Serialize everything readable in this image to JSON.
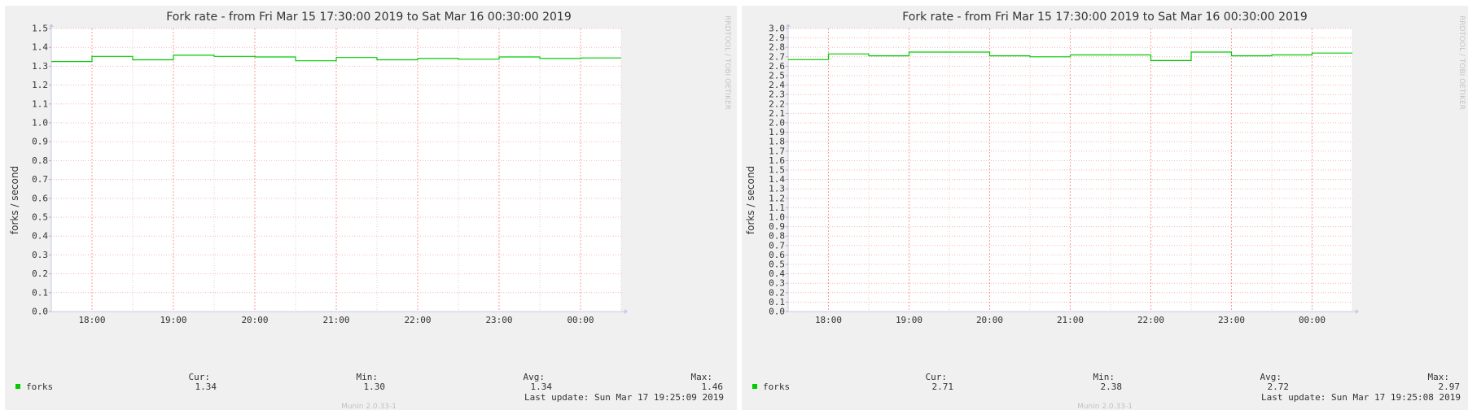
{
  "charts": [
    {
      "title": "Fork rate - from Fri Mar 15 17:30:00 2019 to Sat Mar 16 00:30:00 2019",
      "side_label": "RRDTOOL / TOBI OETIKER",
      "footer_version": "Munin 2.0.33-1",
      "legend": {
        "color": "#00cc00",
        "name": "forks",
        "cur_label": "Cur:",
        "cur": "1.34",
        "min_label": "Min:",
        "min": "1.30",
        "avg_label": "Avg:",
        "avg": "1.34",
        "max_label": "Max:",
        "max": "1.46",
        "last_update": "Last update:  Sun Mar 17 19:25:09 2019"
      }
    },
    {
      "title": "Fork rate - from Fri Mar 15 17:30:00 2019 to Sat Mar 16 00:30:00 2019",
      "side_label": "RRDTOOL / TOBI OETIKER",
      "footer_version": "Munin 2.0.33-1",
      "legend": {
        "color": "#00cc00",
        "name": "forks",
        "cur_label": "Cur:",
        "cur": "2.71",
        "min_label": "Min:",
        "min": "2.38",
        "avg_label": "Avg:",
        "avg": "2.72",
        "max_label": "Max:",
        "max": "2.97",
        "last_update": "Last update:  Sun Mar 17 19:25:08 2019"
      }
    }
  ],
  "chart_data": [
    {
      "type": "line",
      "ylabel": "forks / second",
      "xlabel": "",
      "ylim": [
        0,
        1.5
      ],
      "y_ticks": [
        0.0,
        0.1,
        0.2,
        0.3,
        0.4,
        0.5,
        0.6,
        0.7,
        0.8,
        0.9,
        1.0,
        1.1,
        1.2,
        1.3,
        1.4,
        1.5
      ],
      "y_tick_labels": [
        "0.0",
        "0.1",
        "0.2",
        "0.3",
        "0.4",
        "0.5",
        "0.6",
        "0.7",
        "0.8",
        "0.9",
        "1.0",
        "1.1",
        "1.2",
        "1.3",
        "1.4",
        "1.5"
      ],
      "x_tick_labels": [
        "18:00",
        "19:00",
        "20:00",
        "21:00",
        "22:00",
        "23:00",
        "00:00"
      ],
      "grid": true,
      "series": [
        {
          "name": "forks",
          "color": "#00cc00",
          "step": true,
          "x": [
            "17:30",
            "18:00",
            "18:30",
            "19:00",
            "19:30",
            "20:00",
            "20:30",
            "21:00",
            "21:30",
            "22:00",
            "22:30",
            "23:00",
            "23:30",
            "00:00",
            "00:30"
          ],
          "y": [
            1.325,
            1.352,
            1.334,
            1.358,
            1.352,
            1.349,
            1.329,
            1.346,
            1.334,
            1.341,
            1.337,
            1.349,
            1.341,
            1.344,
            1.344
          ]
        }
      ]
    },
    {
      "type": "line",
      "ylabel": "forks / second",
      "xlabel": "",
      "ylim": [
        0,
        3.0
      ],
      "y_ticks": [
        0.0,
        0.1,
        0.2,
        0.3,
        0.4,
        0.5,
        0.6,
        0.7,
        0.8,
        0.9,
        1.0,
        1.1,
        1.2,
        1.3,
        1.4,
        1.5,
        1.6,
        1.7,
        1.8,
        1.9,
        2.0,
        2.1,
        2.2,
        2.3,
        2.4,
        2.5,
        2.6,
        2.7,
        2.8,
        2.9,
        3.0
      ],
      "y_tick_labels": [
        "0.0",
        "0.1",
        "0.2",
        "0.3",
        "0.4",
        "0.5",
        "0.6",
        "0.7",
        "0.8",
        "0.9",
        "1.0",
        "1.1",
        "1.2",
        "1.3",
        "1.4",
        "1.5",
        "1.6",
        "1.7",
        "1.8",
        "1.9",
        "2.0",
        "2.1",
        "2.2",
        "2.3",
        "2.4",
        "2.5",
        "2.6",
        "2.7",
        "2.8",
        "2.9",
        "3.0"
      ],
      "x_tick_labels": [
        "18:00",
        "19:00",
        "20:00",
        "21:00",
        "22:00",
        "23:00",
        "00:00"
      ],
      "grid": true,
      "series": [
        {
          "name": "forks",
          "color": "#00cc00",
          "step": true,
          "x": [
            "17:30",
            "18:00",
            "18:30",
            "19:00",
            "19:30",
            "20:00",
            "20:30",
            "21:00",
            "21:30",
            "22:00",
            "22:30",
            "23:00",
            "23:30",
            "00:00",
            "00:30"
          ],
          "y": [
            2.67,
            2.73,
            2.71,
            2.75,
            2.75,
            2.71,
            2.7,
            2.72,
            2.72,
            2.66,
            2.75,
            2.71,
            2.72,
            2.74,
            2.74
          ]
        }
      ]
    }
  ]
}
